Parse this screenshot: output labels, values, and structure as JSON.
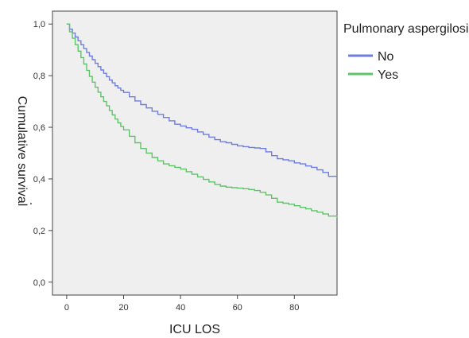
{
  "chart_data": {
    "type": "line",
    "title": "",
    "xlabel": "ICU LOS",
    "ylabel": "Cumulative survival",
    "ylabel_marker": ".",
    "xlim": [
      -5,
      95
    ],
    "ylim": [
      -0.05,
      1.05
    ],
    "xticks": [
      0,
      20,
      40,
      60,
      80
    ],
    "yticks": [
      0.0,
      0.2,
      0.4,
      0.6,
      0.8,
      1.0
    ],
    "ytick_labels": [
      "0,0",
      "0,2",
      "0,4",
      "0,6",
      "0,8",
      "1,0"
    ],
    "grid": false,
    "legend": {
      "title": "Pulmonary aspergilosis",
      "position": "right"
    },
    "series": [
      {
        "name": "No",
        "color": "#6f7de0",
        "x": [
          0,
          1,
          2,
          3,
          4,
          5,
          6,
          7,
          8,
          9,
          10,
          11,
          12,
          13,
          14,
          15,
          16,
          17,
          18,
          19,
          20,
          22,
          24,
          26,
          28,
          30,
          32,
          34,
          36,
          38,
          40,
          42,
          44,
          46,
          48,
          50,
          52,
          54,
          56,
          58,
          60,
          62,
          64,
          66,
          68,
          70,
          72,
          74,
          76,
          78,
          80,
          82,
          84,
          86,
          88,
          90,
          92,
          95
        ],
        "y": [
          1.0,
          0.98,
          0.965,
          0.95,
          0.935,
          0.92,
          0.905,
          0.89,
          0.876,
          0.862,
          0.848,
          0.835,
          0.822,
          0.809,
          0.796,
          0.783,
          0.772,
          0.761,
          0.752,
          0.743,
          0.735,
          0.718,
          0.702,
          0.688,
          0.675,
          0.662,
          0.65,
          0.638,
          0.625,
          0.612,
          0.605,
          0.598,
          0.592,
          0.582,
          0.572,
          0.562,
          0.552,
          0.544,
          0.54,
          0.534,
          0.528,
          0.525,
          0.522,
          0.52,
          0.518,
          0.505,
          0.49,
          0.478,
          0.474,
          0.47,
          0.462,
          0.458,
          0.45,
          0.445,
          0.435,
          0.425,
          0.41,
          0.408
        ]
      },
      {
        "name": "Yes",
        "color": "#5fc469",
        "x": [
          0,
          1,
          2,
          3,
          4,
          5,
          6,
          7,
          8,
          9,
          10,
          11,
          12,
          13,
          14,
          15,
          16,
          17,
          18,
          19,
          20,
          22,
          24,
          26,
          28,
          30,
          32,
          34,
          36,
          38,
          40,
          42,
          44,
          46,
          48,
          50,
          52,
          54,
          56,
          58,
          60,
          62,
          64,
          66,
          68,
          70,
          72,
          74,
          76,
          78,
          80,
          82,
          84,
          86,
          88,
          90,
          92,
          95
        ],
        "y": [
          1.0,
          0.97,
          0.945,
          0.92,
          0.895,
          0.87,
          0.845,
          0.82,
          0.797,
          0.775,
          0.755,
          0.736,
          0.718,
          0.7,
          0.683,
          0.665,
          0.648,
          0.632,
          0.617,
          0.603,
          0.59,
          0.565,
          0.54,
          0.518,
          0.5,
          0.483,
          0.47,
          0.458,
          0.451,
          0.445,
          0.438,
          0.428,
          0.418,
          0.408,
          0.398,
          0.388,
          0.379,
          0.372,
          0.368,
          0.366,
          0.364,
          0.362,
          0.359,
          0.355,
          0.348,
          0.338,
          0.325,
          0.31,
          0.306,
          0.302,
          0.296,
          0.29,
          0.284,
          0.277,
          0.271,
          0.264,
          0.256,
          0.25
        ]
      }
    ]
  }
}
